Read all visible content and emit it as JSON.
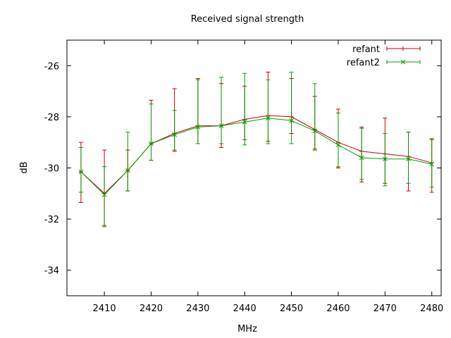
{
  "chart_data": {
    "type": "line",
    "title": "Received signal strength",
    "xlabel": "MHz",
    "ylabel": "dB",
    "xlim": [
      2402,
      2482
    ],
    "ylim": [
      -35,
      -25
    ],
    "xticks": [
      2410,
      2420,
      2430,
      2440,
      2450,
      2460,
      2470,
      2480
    ],
    "yticks": [
      -34,
      -32,
      -30,
      -28,
      -26
    ],
    "grid": false,
    "legend_position": "top-right",
    "x": [
      2405,
      2410,
      2415,
      2420,
      2425,
      2430,
      2435,
      2440,
      2445,
      2450,
      2455,
      2460,
      2465,
      2470,
      2475,
      2480
    ],
    "series": [
      {
        "name": "refant",
        "color": "#cc0000",
        "marker": "plus",
        "values": [
          -30.15,
          -31.0,
          -30.1,
          -29.05,
          -28.65,
          -28.35,
          -28.35,
          -28.1,
          -27.95,
          -28.0,
          -28.5,
          -29.0,
          -29.35,
          -29.45,
          -29.55,
          -29.8
        ],
        "err_low": [
          -31.35,
          -32.25,
          -30.9,
          -29.7,
          -29.35,
          -29.05,
          -29.2,
          -28.9,
          -28.95,
          -28.65,
          -29.3,
          -30.0,
          -30.55,
          -30.6,
          -30.9,
          -30.95
        ],
        "err_high": [
          -29.0,
          -29.3,
          -29.3,
          -27.35,
          -26.9,
          -26.5,
          -26.7,
          -26.8,
          -26.25,
          -26.5,
          -27.2,
          -27.7,
          -28.4,
          -28.05,
          -28.6,
          -28.85
        ]
      },
      {
        "name": "refant2",
        "color": "#00a000",
        "marker": "cross",
        "values": [
          -30.15,
          -31.05,
          -30.1,
          -29.05,
          -28.7,
          -28.4,
          -28.35,
          -28.2,
          -28.05,
          -28.15,
          -28.55,
          -29.1,
          -29.6,
          -29.65,
          -29.65,
          -29.85
        ],
        "err_low": [
          -30.95,
          -32.3,
          -30.9,
          -29.7,
          -29.3,
          -29.05,
          -29.05,
          -29.1,
          -29.05,
          -29.05,
          -29.25,
          -29.95,
          -30.45,
          -30.7,
          -30.6,
          -30.75
        ],
        "err_high": [
          -29.2,
          -29.95,
          -28.6,
          -27.5,
          -27.75,
          -26.55,
          -26.45,
          -26.3,
          -26.55,
          -26.25,
          -26.7,
          -27.85,
          -28.45,
          -28.65,
          -28.6,
          -28.9
        ]
      }
    ]
  }
}
